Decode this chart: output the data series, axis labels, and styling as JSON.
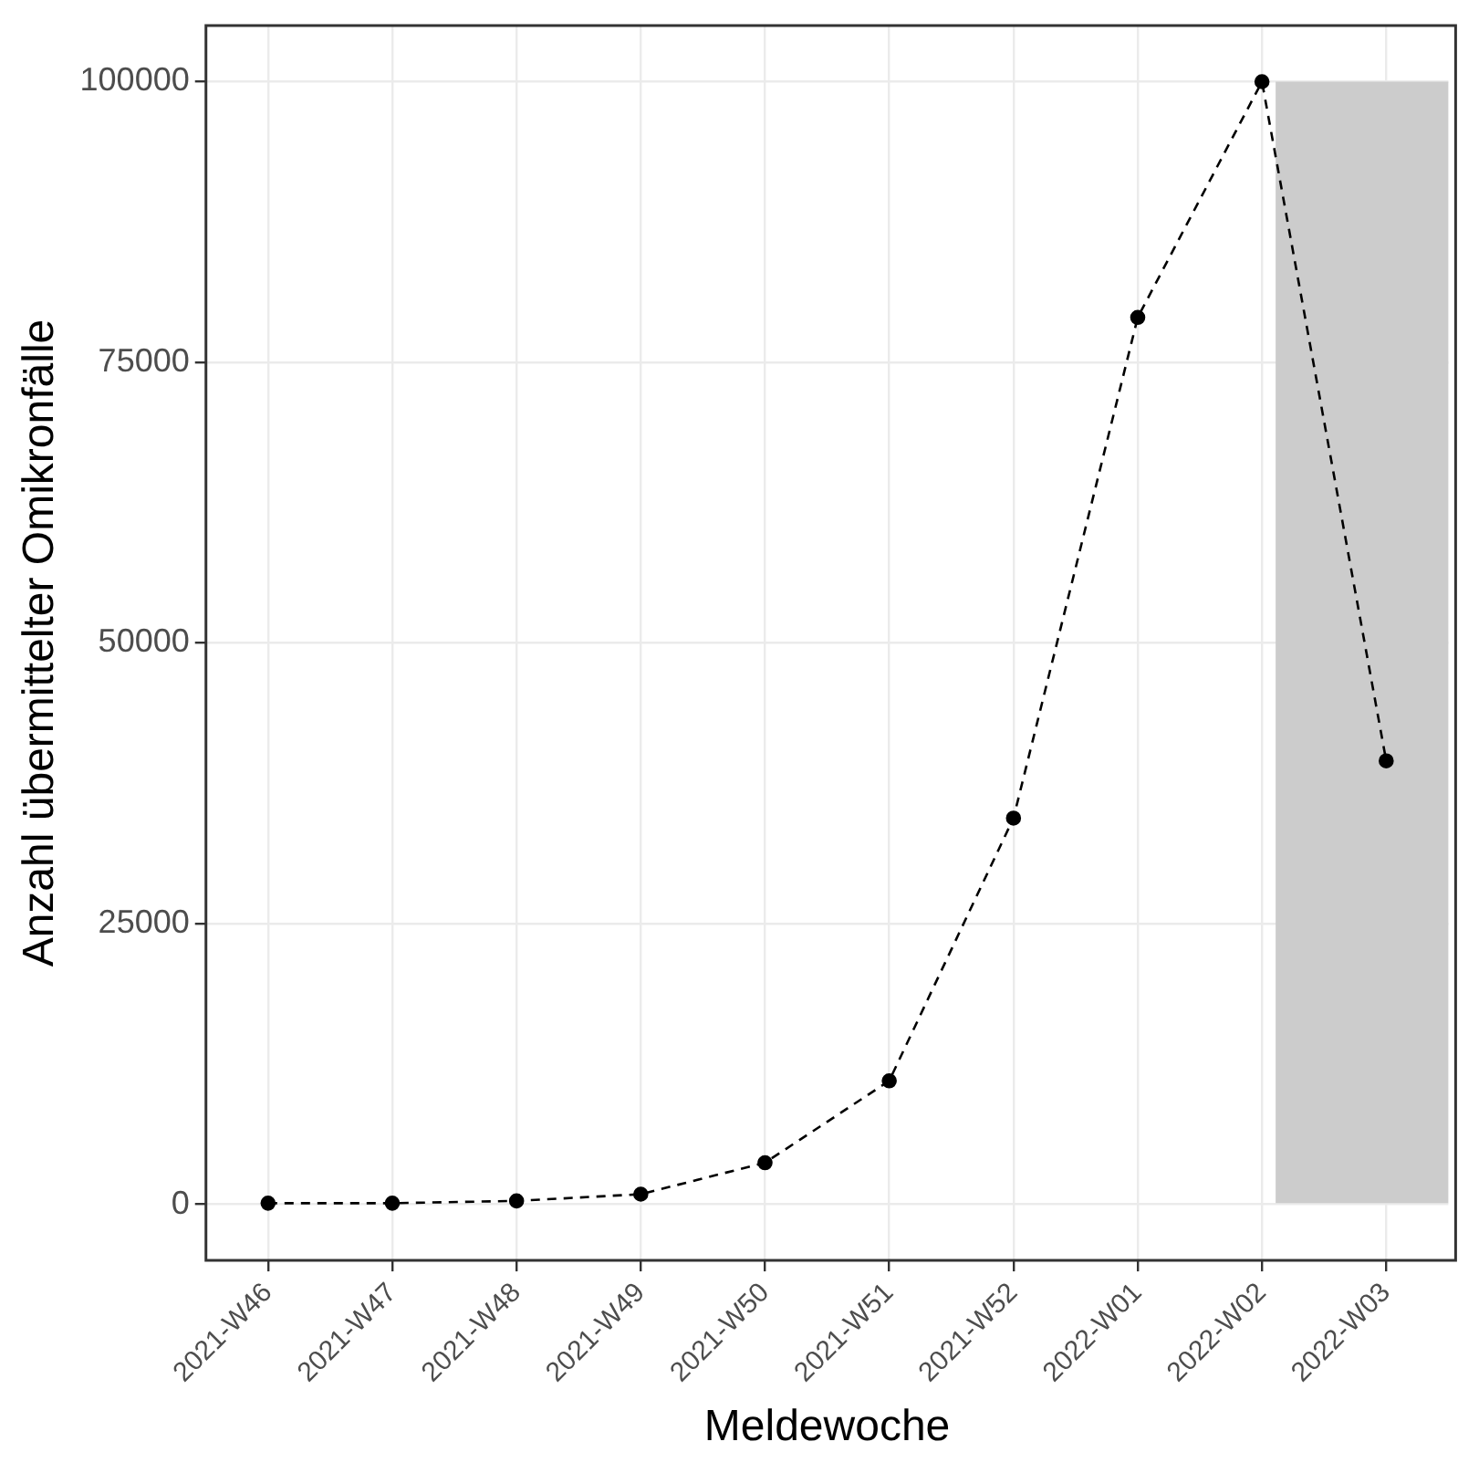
{
  "chart_data": {
    "type": "line",
    "xlabel": "Meldewoche",
    "ylabel": "Anzahl übermittelter Omikronfälle",
    "categories": [
      "2021-W46",
      "2021-W47",
      "2021-W48",
      "2021-W49",
      "2021-W50",
      "2021-W51",
      "2021-W52",
      "2022-W01",
      "2022-W02",
      "2022-W03"
    ],
    "series": [
      {
        "color": "#000000",
        "values": [
          100,
          100,
          300,
          900,
          3700,
          11000,
          34400,
          79000,
          100000,
          39500
        ]
      }
    ],
    "ylim": [
      -5000,
      105000
    ],
    "yticks": [
      0,
      25000,
      50000,
      75000,
      100000
    ],
    "bands": [
      {
        "axis": "x",
        "from": "2022-W02",
        "to": "2022-W03",
        "color": "#cccccc"
      }
    ],
    "grid": true,
    "legend": false,
    "marker": "circle",
    "line_style": "dashed"
  }
}
